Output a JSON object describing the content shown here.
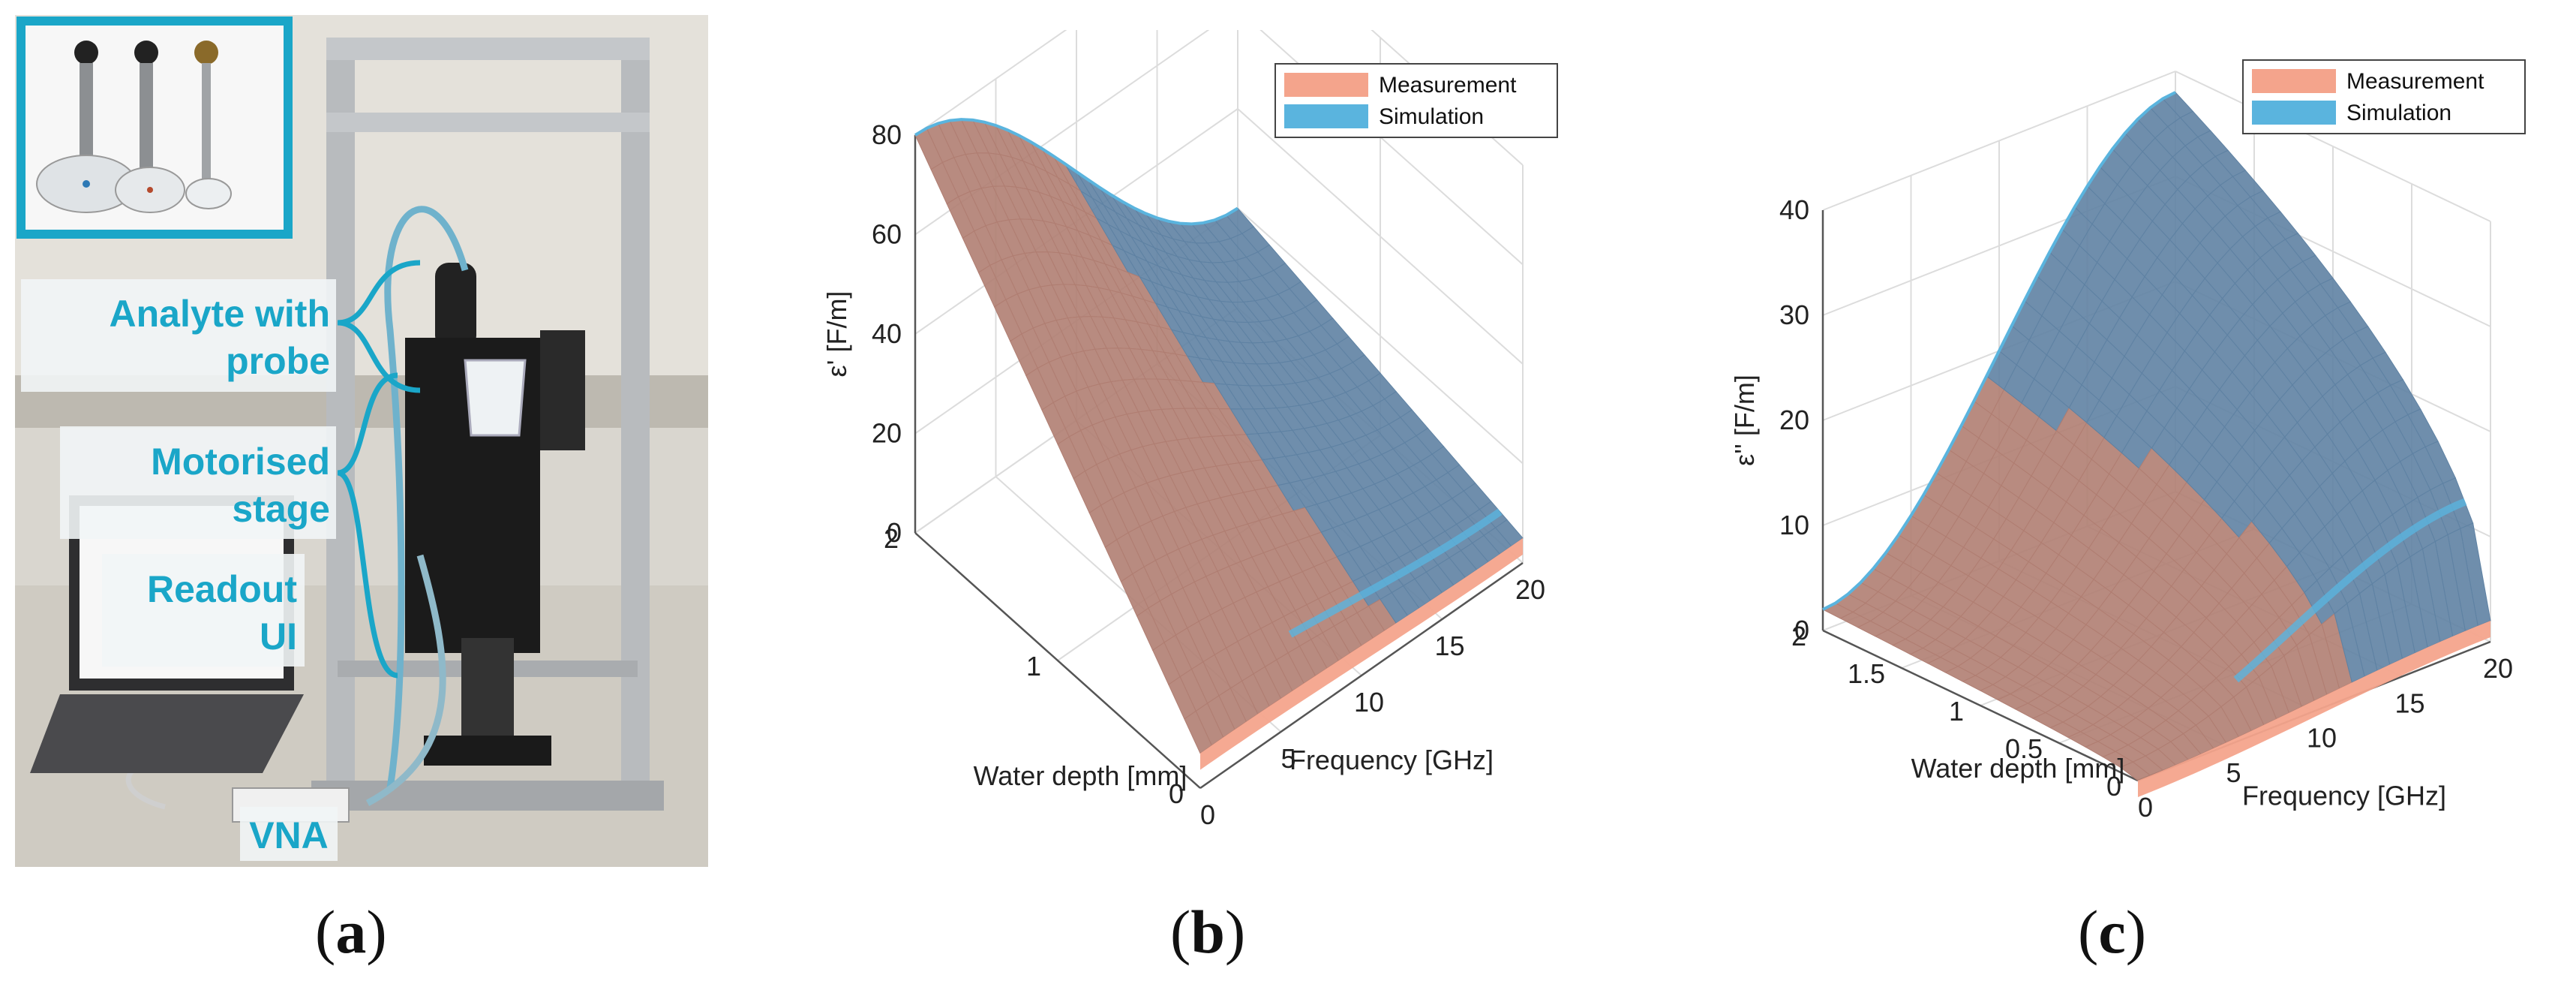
{
  "panel_a": {
    "labels": {
      "analyte_line1": "Analyte with",
      "analyte_line2": "probe",
      "stage_line1": "Motorised",
      "stage_line2": "stage",
      "readout_line1": "Readout",
      "readout_line2": "UI",
      "vna": "VNA"
    },
    "colors": {
      "accent": "#1aa6c8"
    }
  },
  "captions": {
    "a": "a",
    "b": "b",
    "c": "c"
  },
  "chart_data": [
    {
      "type": "surface",
      "panel": "b",
      "zlabel": "ε' [F/m]",
      "xlabel": "Frequency [GHz]",
      "ylabel": "Water depth [mm]",
      "x_range": [
        0,
        20
      ],
      "y_range": [
        0,
        2
      ],
      "z_range": [
        0,
        80
      ],
      "x_ticks": [
        "0",
        "5",
        "10",
        "15",
        "20"
      ],
      "y_ticks": [
        "0",
        "1",
        "2"
      ],
      "z_ticks": [
        "0",
        "20",
        "40",
        "60",
        "80"
      ],
      "grid": true,
      "legend_position": "top-right",
      "series": [
        {
          "name": "Measurement",
          "color": "#f4a48c"
        },
        {
          "name": "Simulation",
          "color": "#5ab4de"
        }
      ],
      "corner_values": {
        "f0_d0": 7,
        "f0_d2": 80,
        "f20_d2": 20,
        "f20_d0": 5
      }
    },
    {
      "type": "surface",
      "panel": "c",
      "zlabel": "ε'' [F/m]",
      "xlabel": "Frequency [GHz]",
      "ylabel": "Water depth [mm]",
      "x_range": [
        0,
        20
      ],
      "y_range": [
        0,
        2
      ],
      "z_range": [
        0,
        40
      ],
      "x_ticks": [
        "0",
        "5",
        "10",
        "15",
        "20"
      ],
      "y_ticks": [
        "0",
        "0.5",
        "1",
        "1.5",
        "2"
      ],
      "z_ticks": [
        "0",
        "10",
        "20",
        "30",
        "40"
      ],
      "grid": true,
      "legend_position": "top-right",
      "series": [
        {
          "name": "Measurement",
          "color": "#f4a48c"
        },
        {
          "name": "Simulation",
          "color": "#5ab4de"
        }
      ],
      "corner_values": {
        "f0_d0": 0,
        "f0_d2": 2,
        "f20_d2": 38,
        "f20_d0": 2
      }
    }
  ]
}
